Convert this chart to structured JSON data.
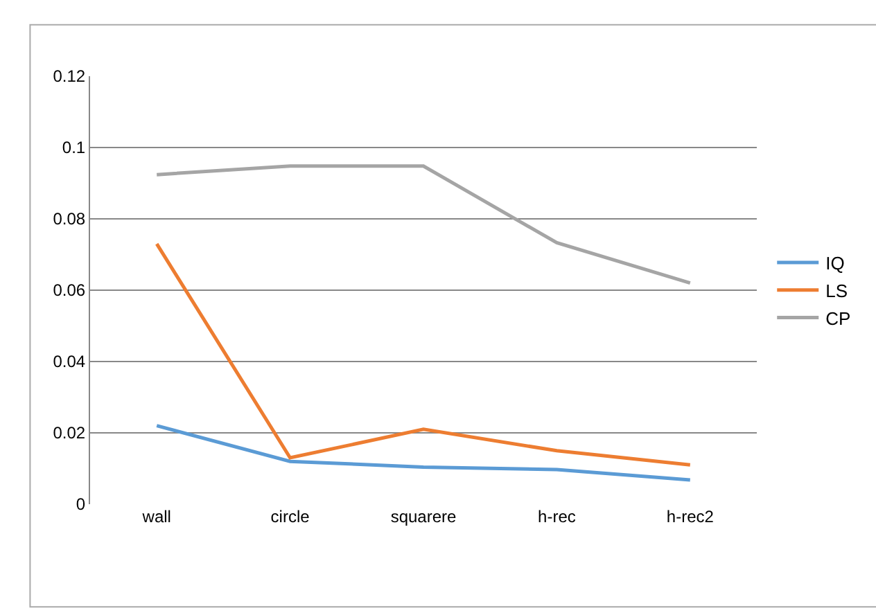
{
  "chart_data": {
    "type": "line",
    "categories": [
      "wall",
      "circle",
      "squarere",
      "h-rec",
      "h-rec2"
    ],
    "series": [
      {
        "name": "IQ",
        "color": "#5b9bd5",
        "values": [
          0.022,
          0.012,
          0.0104,
          0.0097,
          0.0068
        ]
      },
      {
        "name": "LS",
        "color": "#ed7d31",
        "values": [
          0.073,
          0.013,
          0.021,
          0.015,
          0.011
        ]
      },
      {
        "name": "CP",
        "color": "#a5a5a5",
        "values": [
          0.0924,
          0.0948,
          0.0948,
          0.0733,
          0.062
        ]
      }
    ],
    "ylim": [
      0,
      0.12
    ],
    "yticks": [
      0,
      0.02,
      0.04,
      0.06,
      0.08,
      0.1,
      0.12
    ],
    "grid": "y",
    "legend": "right",
    "marker": "none",
    "line_style": "solid"
  }
}
